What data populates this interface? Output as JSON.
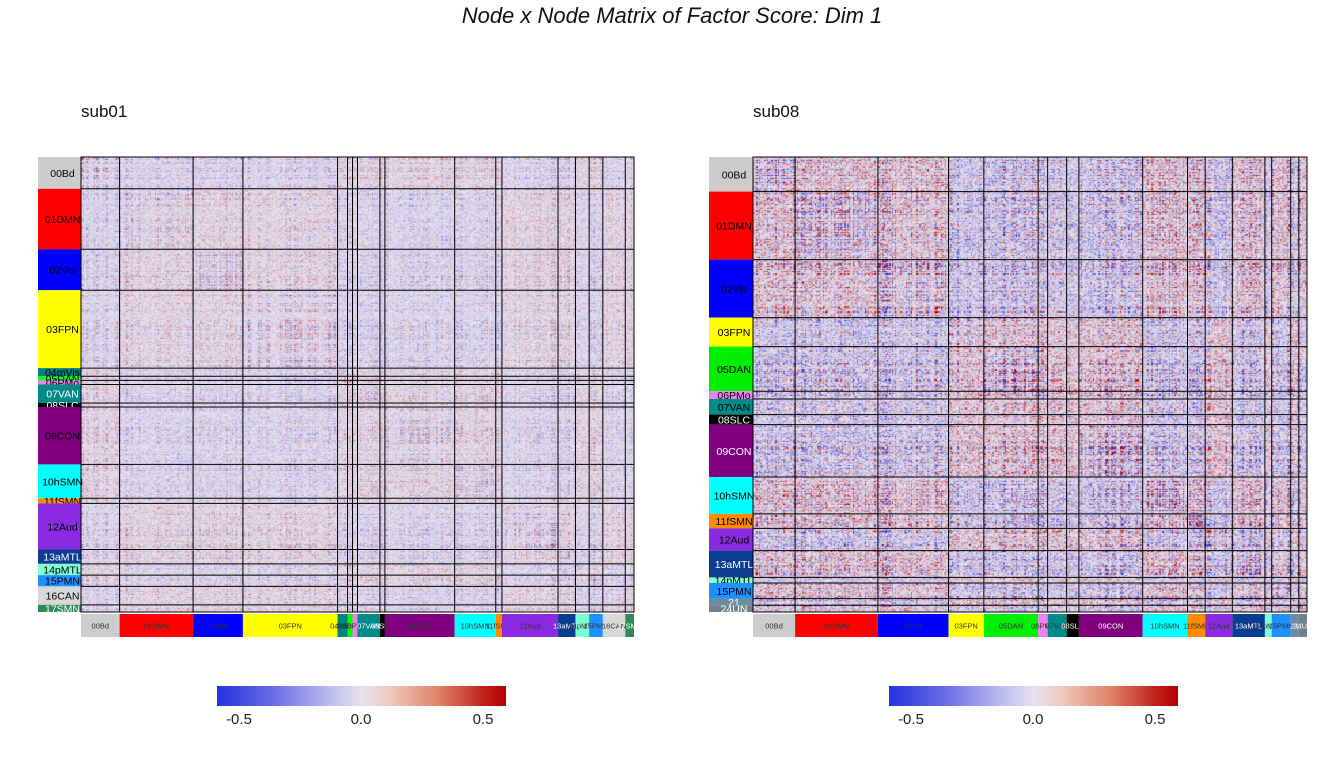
{
  "title": "Node x Node Matrix of Factor Score: Dim 1",
  "chart_data": [
    {
      "type": "heatmap",
      "panel": "sub01",
      "title": "sub01",
      "colorbar": {
        "min": -0.65,
        "max": 0.65,
        "ticks": [
          -0.5,
          0.0,
          0.5
        ],
        "tick_labels": [
          "-0.5",
          "0.0",
          "0.5"
        ],
        "colors": [
          "#2233dd",
          "#e6e2ee",
          "#b30000"
        ]
      },
      "row_labels": [
        "00Bd",
        "01DMN",
        "02Vis",
        "03FPN",
        "04mVis",
        "05DAN",
        "06PMo",
        "07VAN",
        "08SLC",
        "09CON",
        "10hSMN",
        "11fSMN",
        "12Aud",
        "13aMTL",
        "14pMTL",
        "15PMN",
        "16CAN",
        "17SMN"
      ],
      "col_labels": [
        "00Bd",
        "01DMN",
        "02Vis",
        "03FPN",
        "04mVis",
        "05DAN",
        "06PMo",
        "07VAN",
        "08SLC",
        "09CON",
        "10hSMN",
        "11fSMN",
        "12Aud",
        "13aMTL",
        "14pMTL",
        "15PMN",
        "16CAN",
        "17SMN"
      ],
      "network_sizes": [
        31,
        59,
        40,
        76,
        8,
        4,
        4,
        18,
        4,
        56,
        33,
        5,
        45,
        14,
        11,
        11,
        18,
        7
      ],
      "network_colors": [
        "#cccccc",
        "#ff0000",
        "#0000ff",
        "#ffff00",
        "#008080",
        "#00ff00",
        "#ee82ee",
        "#008b8b",
        "#000000",
        "#800080",
        "#00ffff",
        "#ff8c00",
        "#8a2be2",
        "#0a3d91",
        "#7fffd4",
        "#1e90ff",
        "#d9d9d9",
        "#2e8b57"
      ],
      "label_colors": [
        "#000000",
        "#000000",
        "#000000",
        "#000000",
        "#000000",
        "#000000",
        "#000000",
        "#ffffff",
        "#ffffff",
        "#000000",
        "#000000",
        "#000000",
        "#000000",
        "#ffffff",
        "#000000",
        "#000000",
        "#000000",
        "#ffffff"
      ],
      "intensity": 0.45
    },
    {
      "type": "heatmap",
      "panel": "sub08",
      "title": "sub08",
      "colorbar": {
        "min": -0.65,
        "max": 0.65,
        "ticks": [
          -0.5,
          0.0,
          0.5
        ],
        "tick_labels": [
          "-0.5",
          "0.0",
          "0.5"
        ],
        "colors": [
          "#2233dd",
          "#e6e2ee",
          "#b30000"
        ]
      },
      "row_labels": [
        "00Bd",
        "01DMN",
        "02Vis",
        "03FPN",
        "05DAN",
        "06PMo",
        "07VAN",
        "08SLC",
        "09CON",
        "10hSMN",
        "11fSMN",
        "12Aud",
        "13aMTL",
        "14pMTL",
        "15PMN",
        "21",
        "24UN"
      ],
      "col_labels": [
        "00Bd",
        "01DMN",
        "02Vis",
        "03FPN",
        "05DAN",
        "06PMo",
        "07VAN",
        "08SLC",
        "09CON",
        "10hSMN",
        "11fSMN",
        "12Aud",
        "13aMTL",
        "14pMTL",
        "15PMN",
        "21",
        "24UN"
      ],
      "network_sizes": [
        31,
        61,
        52,
        26,
        40,
        7,
        14,
        9,
        47,
        33,
        13,
        20,
        24,
        5,
        14,
        6,
        6
      ],
      "network_colors": [
        "#cccccc",
        "#ff0000",
        "#0000ff",
        "#ffff00",
        "#00ee00",
        "#ee82ee",
        "#008b8b",
        "#000000",
        "#800080",
        "#00ffff",
        "#ff8c00",
        "#8a2be2",
        "#0a3d91",
        "#7fffd4",
        "#1e90ff",
        "#6b8e9f",
        "#708090"
      ],
      "label_colors": [
        "#000000",
        "#000000",
        "#000000",
        "#000000",
        "#000000",
        "#000000",
        "#000000",
        "#ffffff",
        "#ffffff",
        "#000000",
        "#000000",
        "#000000",
        "#ffffff",
        "#000000",
        "#000000",
        "#ffffff",
        "#ffffff"
      ],
      "intensity": 0.95
    }
  ]
}
